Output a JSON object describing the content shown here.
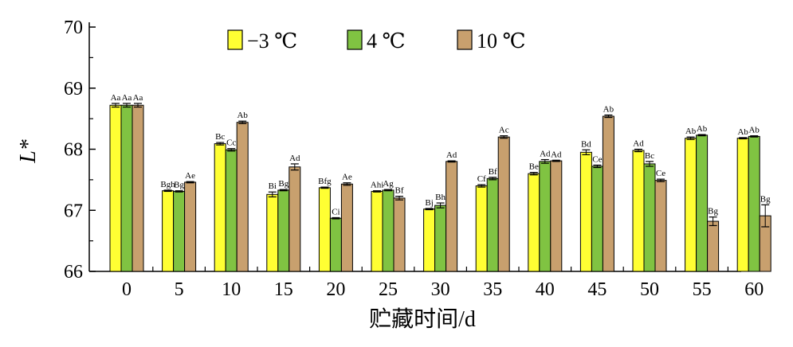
{
  "chart_data": {
    "type": "bar",
    "xlabel": "贮藏时间/d",
    "ylabel": "L*",
    "ylim": [
      66,
      70
    ],
    "yticks": [
      66,
      67,
      68,
      69,
      70
    ],
    "categories": [
      "0",
      "5",
      "10",
      "15",
      "20",
      "25",
      "30",
      "35",
      "40",
      "45",
      "50",
      "55",
      "60"
    ],
    "legend_position": "top",
    "series": [
      {
        "name": "−3 ℃",
        "color": "#ffff33",
        "values": [
          68.72,
          67.32,
          68.09,
          67.26,
          67.37,
          67.31,
          67.02,
          67.4,
          67.6,
          67.95,
          67.98,
          68.18,
          68.18
        ],
        "errors": [
          0.03,
          0.01,
          0.02,
          0.04,
          0.01,
          0.01,
          0.01,
          0.02,
          0.02,
          0.04,
          0.02,
          0.02,
          0.01
        ],
        "labels": [
          "Aa",
          "Bgh",
          "Bc",
          "Bi",
          "Bfg",
          "Ahi",
          "Bj",
          "Cf",
          "Be",
          "Bd",
          "Ad",
          "Ab",
          "Ab"
        ]
      },
      {
        "name": "4 ℃",
        "color": "#80c342",
        "values": [
          68.72,
          67.31,
          67.99,
          67.33,
          66.87,
          67.33,
          67.08,
          67.52,
          67.8,
          67.72,
          67.76,
          68.23,
          68.21
        ],
        "errors": [
          0.03,
          0.01,
          0.02,
          0.01,
          0.01,
          0.01,
          0.04,
          0.02,
          0.03,
          0.02,
          0.04,
          0.01,
          0.01
        ],
        "labels": [
          "Aa",
          "Bg",
          "Cc",
          "Bg",
          "Ci",
          "Ag",
          "Bh",
          "Bf",
          "Ad",
          "Ce",
          "Bc",
          "Ab",
          "Ab"
        ]
      },
      {
        "name": "10 ℃",
        "color": "#c8a06e",
        "values": [
          68.72,
          67.46,
          68.44,
          67.71,
          67.43,
          67.2,
          67.8,
          68.2,
          67.81,
          68.54,
          67.49,
          66.82,
          66.91
        ],
        "errors": [
          0.03,
          0.01,
          0.02,
          0.05,
          0.02,
          0.03,
          0.01,
          0.02,
          0.01,
          0.02,
          0.02,
          0.07,
          0.18
        ],
        "labels": [
          "Aa",
          "Ae",
          "Ab",
          "Ad",
          "Ae",
          "Bf",
          "Ad",
          "Ac",
          "Ad",
          "Ab",
          "Ce",
          "Bg",
          "Bg"
        ]
      }
    ]
  }
}
